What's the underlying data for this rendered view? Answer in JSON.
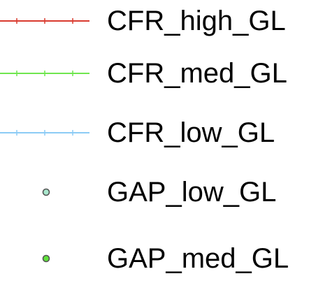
{
  "chart_data": {
    "type": "line",
    "legend": [
      {
        "name": "CFR_high_GL",
        "style": "line-tick",
        "color": "#d93a2e"
      },
      {
        "name": "CFR_med_GL",
        "style": "line-tick",
        "color": "#6fe64f"
      },
      {
        "name": "CFR_low_GL",
        "style": "line-tick",
        "color": "#8ccbf5"
      },
      {
        "name": "GAP_low_GL",
        "style": "point",
        "color": "#a8e6cc"
      },
      {
        "name": "GAP_med_GL",
        "style": "point",
        "color": "#5fe23b"
      }
    ]
  }
}
